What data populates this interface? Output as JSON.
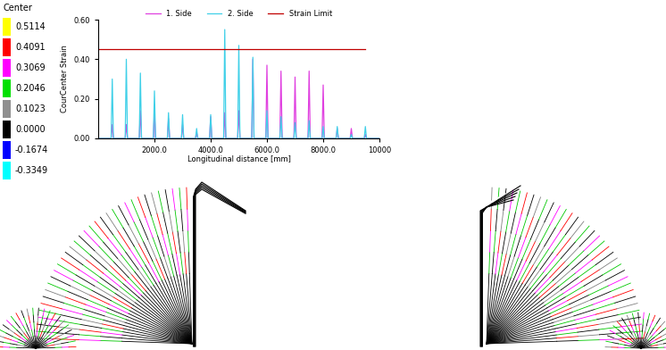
{
  "chart_data": {
    "type": "line",
    "xlabel": "Longitudinal distance [mm]",
    "ylabel": "CourCenter Strain",
    "x": [
      0,
      460,
      500,
      540,
      960,
      1000,
      1040,
      1460,
      1500,
      1540,
      1960,
      2000,
      2040,
      2460,
      2500,
      2540,
      2960,
      3000,
      3040,
      3460,
      3500,
      3540,
      3960,
      4000,
      4040,
      4460,
      4500,
      4540,
      4960,
      5000,
      5040,
      5460,
      5500,
      5540,
      5960,
      6000,
      6040,
      6460,
      6500,
      6540,
      6960,
      7000,
      7040,
      7460,
      7500,
      7540,
      7960,
      8000,
      8040,
      8460,
      8500,
      8540,
      8960,
      9000,
      9040,
      9460,
      9500,
      9540,
      10000
    ],
    "xlim": [
      0,
      10000
    ],
    "xticks": [
      {
        "value": 2000,
        "label": "2000.0"
      },
      {
        "value": 4000,
        "label": "4000.0"
      },
      {
        "value": 6000,
        "label": "6000.0"
      },
      {
        "value": 8000,
        "label": "8000.0"
      },
      10000
    ],
    "ylim": [
      0,
      0.6
    ],
    "yticks": [
      {
        "value": 0,
        "label": "0.00"
      },
      {
        "value": 0.2,
        "label": "0.20"
      },
      {
        "value": 0.4,
        "label": "0.40"
      },
      {
        "value": 0.6,
        "label": "0.60"
      }
    ],
    "legend": "upper center",
    "series": [
      {
        "name": "1. Side",
        "color": "#e040e0",
        "values": [
          0,
          0,
          0.07,
          0,
          0,
          0.07,
          0,
          0,
          0.14,
          0,
          0,
          0.13,
          0,
          0,
          0.1,
          0,
          0,
          0.07,
          0,
          0,
          0.03,
          0,
          0,
          0.11,
          0,
          0,
          0.13,
          0,
          0,
          0.14,
          0,
          0,
          0.4,
          0,
          0,
          0.37,
          0,
          0,
          0.34,
          0,
          0,
          0.31,
          0,
          0,
          0.34,
          0,
          0,
          0.27,
          0,
          0,
          0.05,
          0,
          0,
          0.05,
          0,
          0,
          0.02,
          0,
          0
        ]
      },
      {
        "name": "2. Side",
        "color": "#40d0e8",
        "values": [
          0,
          0,
          0.3,
          0,
          0,
          0.4,
          0,
          0,
          0.33,
          0,
          0,
          0.24,
          0,
          0,
          0.13,
          0,
          0,
          0.12,
          0,
          0,
          0.05,
          0,
          0,
          0.12,
          0,
          0,
          0.55,
          0,
          0,
          0.47,
          0,
          0,
          0.41,
          0,
          0,
          0.14,
          0,
          0,
          0.11,
          0,
          0,
          0.08,
          0,
          0,
          0.09,
          0,
          0,
          0.06,
          0,
          0,
          0.06,
          0,
          0,
          0.02,
          0,
          0,
          0.06,
          0,
          0
        ]
      },
      {
        "name": "Strain Limit",
        "color": "#c00000",
        "x": [
          0,
          9500
        ],
        "values": [
          0.45,
          0.45
        ]
      }
    ]
  },
  "color_scale": {
    "title": "Center",
    "entries": [
      {
        "label": "0.5114",
        "color": "#ffff00"
      },
      {
        "label": "0.4091",
        "color": "#ff0000"
      },
      {
        "label": "0.3069",
        "color": "#ff00ff"
      },
      {
        "label": "0.2046",
        "color": "#00e000"
      },
      {
        "label": "0.1023",
        "color": "#909090"
      },
      {
        "label": "0.0000",
        "color": "#000000"
      },
      {
        "label": "-0.1674",
        "color": "#0000ff"
      },
      {
        "label": "-0.3349",
        "color": "#00ffff"
      }
    ]
  }
}
